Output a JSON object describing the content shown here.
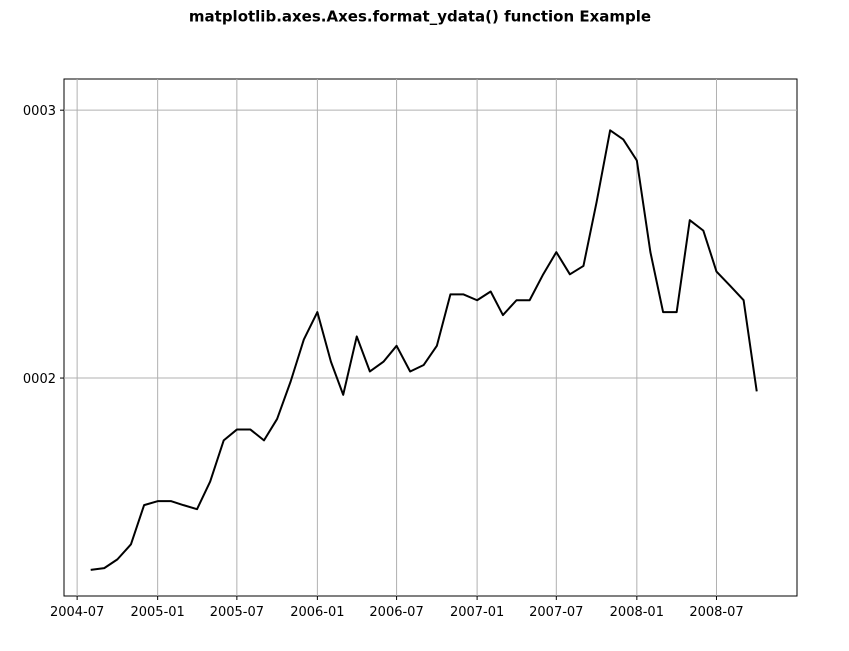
{
  "chart_data": {
    "type": "line",
    "title": "matplotlib.axes.Axes.format_ydata() function Example",
    "x": [
      "2004-08",
      "2004-09",
      "2004-10",
      "2004-11",
      "2004-12",
      "2005-01",
      "2005-02",
      "2005-03",
      "2005-04",
      "2005-05",
      "2005-06",
      "2005-07",
      "2005-08",
      "2005-09",
      "2005-10",
      "2005-11",
      "2005-12",
      "2006-01",
      "2006-02",
      "2006-03",
      "2006-04",
      "2006-05",
      "2006-06",
      "2006-07",
      "2006-08",
      "2006-09",
      "2006-10",
      "2006-11",
      "2006-12",
      "2007-01",
      "2007-02",
      "2007-03",
      "2007-04",
      "2007-05",
      "2007-06",
      "2007-07",
      "2007-08",
      "2007-09",
      "2007-10",
      "2007-11",
      "2007-12",
      "2008-01",
      "2008-02",
      "2008-03",
      "2008-04",
      "2008-05",
      "2008-06",
      "2008-07",
      "2008-08",
      "2008-09",
      "2008-10"
    ],
    "series": [
      {
        "color": "#000000",
        "values": [
          149.6,
          150,
          152,
          155.5,
          165,
          166,
          166,
          165,
          164,
          171,
          182,
          185,
          185,
          182,
          188,
          199,
          212,
          221,
          205,
          195,
          213,
          202,
          205,
          210,
          202,
          204,
          210,
          227,
          227,
          225,
          228,
          220,
          225,
          225,
          234,
          242,
          234,
          237,
          261,
          291,
          287,
          278,
          242,
          221,
          221,
          254,
          250,
          235,
          230,
          225,
          196
        ]
      }
    ],
    "xlim": [
      "2004-06",
      "2009-01"
    ],
    "xticks": [
      "2004-07",
      "2005-01",
      "2005-07",
      "2006-01",
      "2006-07",
      "2007-01",
      "2007-07",
      "2008-01",
      "2008-07"
    ],
    "ylim": [
      143.8,
      314.5
    ],
    "log_y": true,
    "yticks": [
      {
        "value": 200,
        "label": "0002"
      },
      {
        "value": 300,
        "label": "0003"
      }
    ],
    "grid": true
  }
}
